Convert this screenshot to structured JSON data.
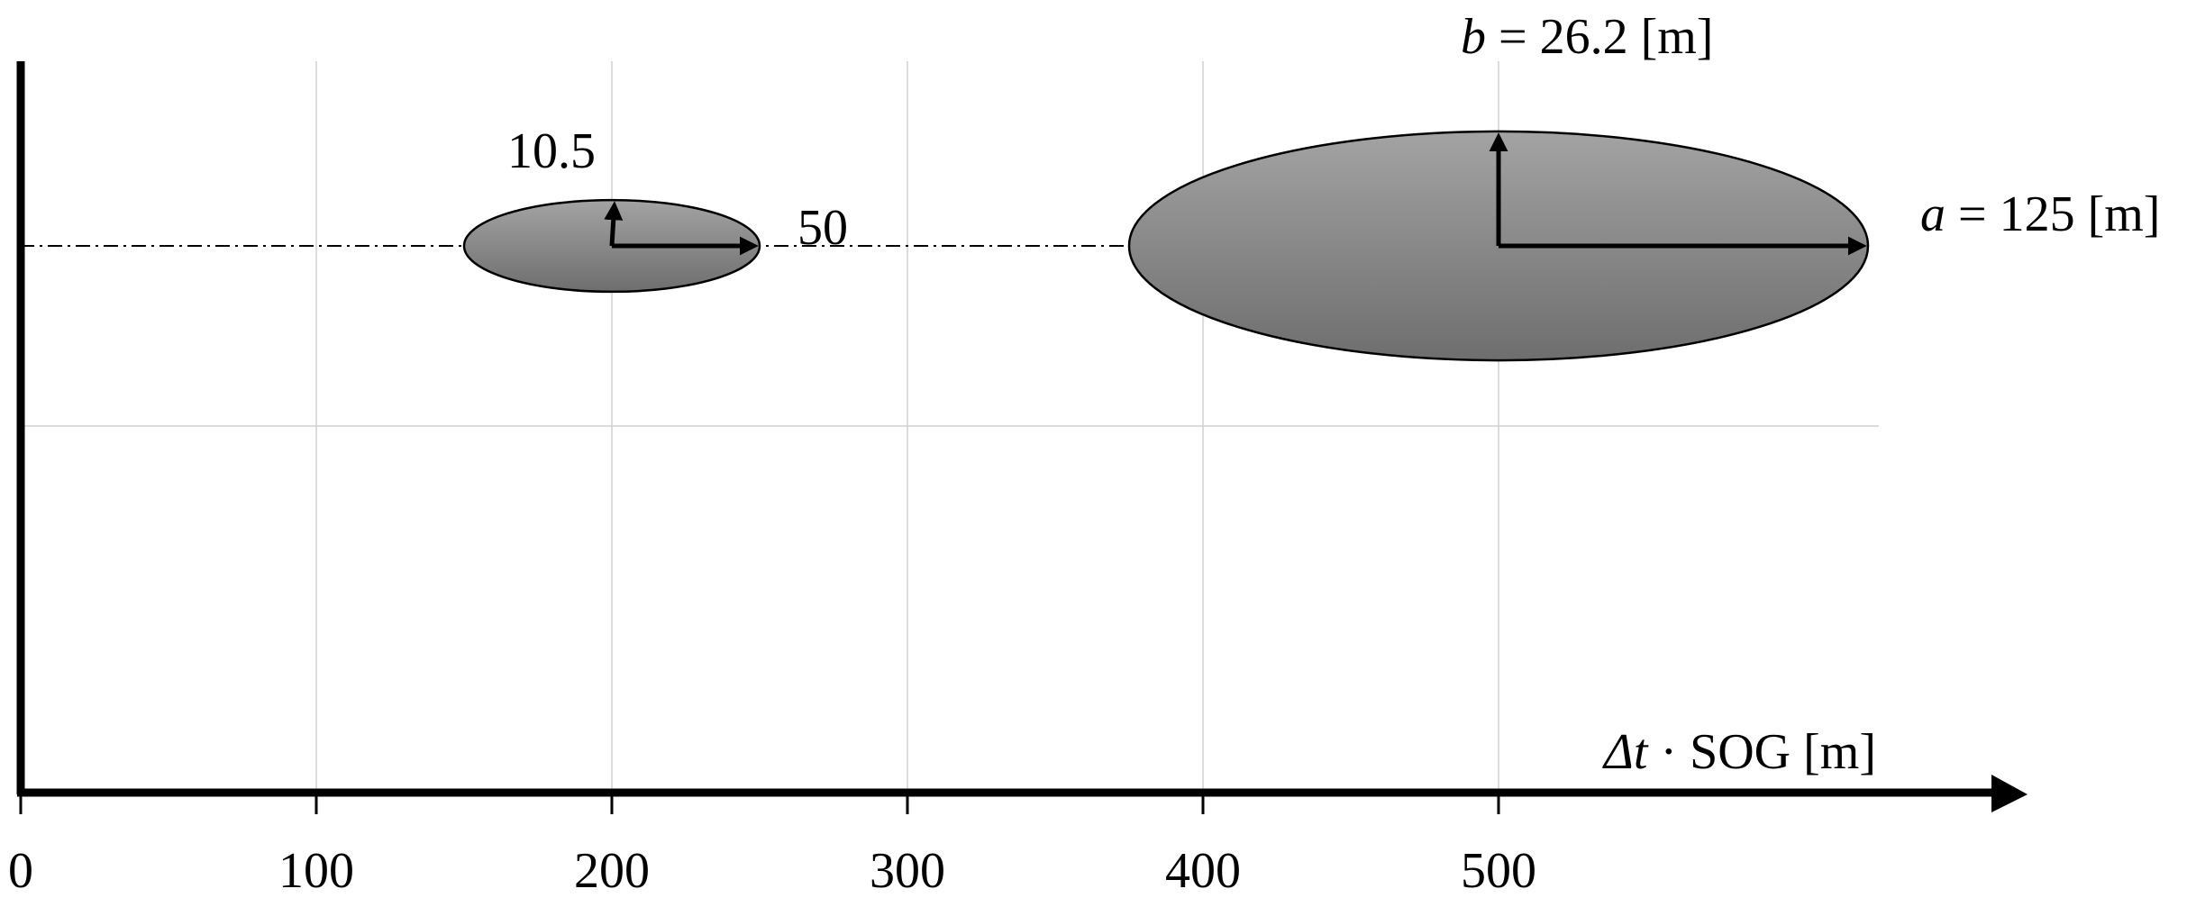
{
  "diagram": {
    "x_axis": {
      "label_symbol": "Δt",
      "label_rest": " · SOG [m]",
      "ticks": [
        "0",
        "100",
        "200",
        "300",
        "400",
        "500"
      ]
    },
    "small_ellipse": {
      "center_x": 200,
      "semi_major": 50,
      "semi_minor": 10.5,
      "label_a": "50",
      "label_b": "10.5"
    },
    "large_ellipse": {
      "center_x": 500,
      "semi_major": 125,
      "semi_minor": 26.2,
      "label_a_var": "a",
      "label_a_rest": " = 125 [m]",
      "label_b_var": "b",
      "label_b_rest": " = 26.2 [m]"
    },
    "colors": {
      "ellipse_top": "#a3a3a3",
      "ellipse_bottom": "#6e6e6e",
      "grid": "#d0d0d0",
      "axis": "#000000"
    }
  }
}
